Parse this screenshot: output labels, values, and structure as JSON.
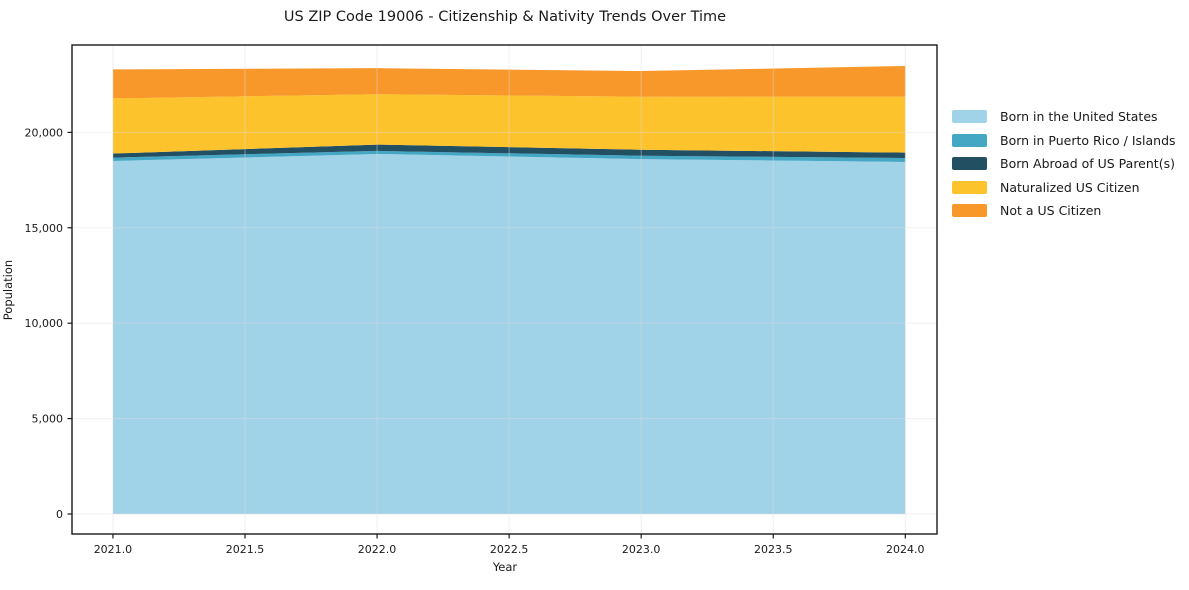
{
  "window": {
    "background_color": "#ffffff"
  },
  "chart_data": {
    "type": "area",
    "stacked": true,
    "title": "US ZIP Code 19006 - Citizenship & Nativity Trends Over Time",
    "xlabel": "Year",
    "ylabel": "Population",
    "x": [
      2021,
      2022,
      2023,
      2024
    ],
    "series": [
      {
        "name": "Born in the United States",
        "color": "#a0d2e8",
        "values": [
          18500,
          18870,
          18600,
          18450
        ]
      },
      {
        "name": "Born in Puerto Rico / Islands",
        "color": "#44a7c4",
        "values": [
          180,
          160,
          175,
          210
        ]
      },
      {
        "name": "Born Abroad of US Parent(s)",
        "color": "#234f63",
        "values": [
          210,
          330,
          315,
          280
        ]
      },
      {
        "name": "Naturalized US Citizen",
        "color": "#fdc32d",
        "values": [
          2890,
          2640,
          2780,
          2935
        ]
      },
      {
        "name": "Not a US Citizen",
        "color": "#f8982a",
        "values": [
          1520,
          1365,
          1345,
          1605
        ]
      }
    ],
    "stack_totals": [
      23300,
      23365,
      23215,
      23480
    ],
    "xlim": [
      2020.845,
      2024.12
    ],
    "ylim": [
      -1050,
      24580
    ],
    "xticks": {
      "values": [
        2021.0,
        2021.5,
        2022.0,
        2022.5,
        2023.0,
        2023.5,
        2024.0
      ],
      "labels": [
        "2021.0",
        "2021.5",
        "2022.0",
        "2022.5",
        "2023.0",
        "2023.5",
        "2024.0"
      ]
    },
    "yticks": {
      "values": [
        0,
        5000,
        10000,
        15000,
        20000
      ],
      "labels": [
        "0",
        "5,000",
        "10,000",
        "15,000",
        "20,000"
      ]
    },
    "grid": true,
    "legend_position": "right",
    "axis_color": "#1a1a1a",
    "grid_color": "#dddddd"
  }
}
